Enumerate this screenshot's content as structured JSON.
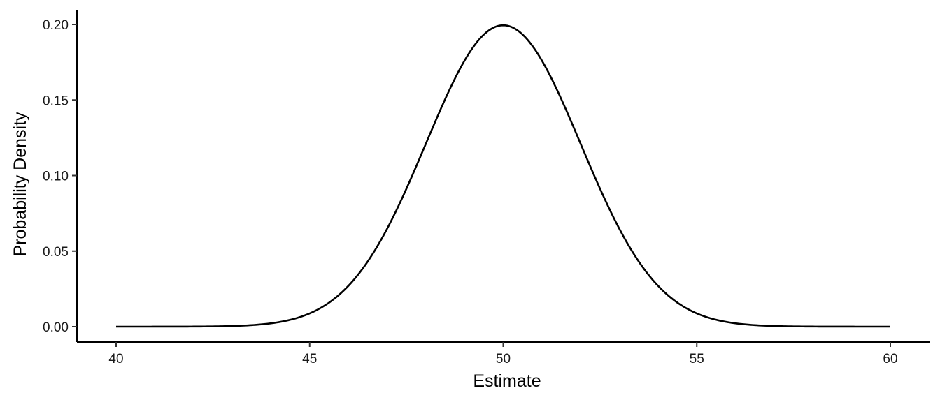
{
  "chart_data": {
    "type": "line",
    "title": "",
    "xlabel": "Estimate",
    "ylabel": "Probability Density",
    "xlim": [
      40,
      60
    ],
    "ylim": [
      0,
      0.2
    ],
    "x_ticks": [
      "40",
      "45",
      "50",
      "55",
      "60"
    ],
    "y_ticks": [
      "0.00",
      "0.05",
      "0.10",
      "0.15",
      "0.20"
    ],
    "grid": false,
    "legend": "none",
    "line_color": "#000000",
    "distribution": "normal",
    "mean": 50,
    "sd": 2,
    "series": [
      {
        "x": [
          40,
          41,
          42,
          43,
          44,
          45,
          46,
          47,
          48,
          49,
          50,
          51,
          52,
          53,
          54,
          55,
          56,
          57,
          58,
          59,
          60
        ],
        "values": [
          0.0,
          0.0,
          0.0001,
          0.0004,
          0.0022,
          0.0088,
          0.027,
          0.0648,
          0.121,
          0.176,
          0.1995,
          0.176,
          0.121,
          0.0648,
          0.027,
          0.0088,
          0.0022,
          0.0004,
          0.0001,
          0.0,
          0.0
        ]
      }
    ]
  }
}
